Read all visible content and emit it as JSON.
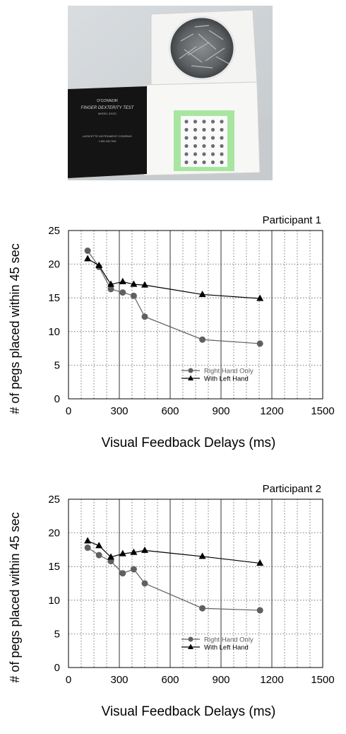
{
  "photo": {
    "box_title": "O'CONNOR",
    "box_subtitle": "FINGER DEXTERITY TEST",
    "box_model": "MODEL 32021",
    "box_maker": "LAFAYETTE INSTRUMENT COMPANY",
    "box_phone": "1-800-428-7545"
  },
  "chart_data": [
    {
      "type": "line",
      "title": "Participant 1",
      "xlabel": "Visual Feedback Delays (ms)",
      "ylabel": "# of pegs placed within  45 sec",
      "xlim": [
        0,
        1500
      ],
      "ylim": [
        0,
        25
      ],
      "xticks": [
        0,
        300,
        600,
        900,
        1200,
        1500
      ],
      "yticks": [
        0,
        5,
        10,
        15,
        20,
        25
      ],
      "grid": true,
      "legend": "lower-center",
      "series": [
        {
          "name": "Right Hand Only",
          "marker": "circle",
          "x": [
            113,
            180,
            250,
            320,
            385,
            450,
            790,
            1130
          ],
          "y": [
            22,
            19.6,
            16.3,
            15.8,
            15.3,
            12.2,
            8.8,
            8.2
          ]
        },
        {
          "name": "With Left Hand",
          "marker": "triangle",
          "x": [
            113,
            180,
            250,
            320,
            385,
            450,
            790,
            1130
          ],
          "y": [
            20.8,
            19.8,
            17,
            17.4,
            17,
            16.9,
            15.5,
            14.9
          ]
        }
      ]
    },
    {
      "type": "line",
      "title": "Participant 2",
      "xlabel": "Visual Feedback Delays (ms)",
      "ylabel": "# of pegs placed within  45 sec",
      "xlim": [
        0,
        1500
      ],
      "ylim": [
        0,
        25
      ],
      "xticks": [
        0,
        300,
        600,
        900,
        1200,
        1500
      ],
      "yticks": [
        0,
        5,
        10,
        15,
        20,
        25
      ],
      "grid": true,
      "legend": "lower-center",
      "series": [
        {
          "name": "Right Hand Only",
          "marker": "circle",
          "x": [
            113,
            180,
            250,
            320,
            385,
            450,
            790,
            1130
          ],
          "y": [
            17.8,
            16.7,
            15.8,
            14,
            14.6,
            12.5,
            8.8,
            8.5
          ]
        },
        {
          "name": "With Left Hand",
          "marker": "triangle",
          "x": [
            113,
            180,
            250,
            320,
            385,
            450,
            790,
            1130
          ],
          "y": [
            18.8,
            18.1,
            16.4,
            16.9,
            17.1,
            17.4,
            16.5,
            15.5
          ]
        }
      ]
    }
  ]
}
